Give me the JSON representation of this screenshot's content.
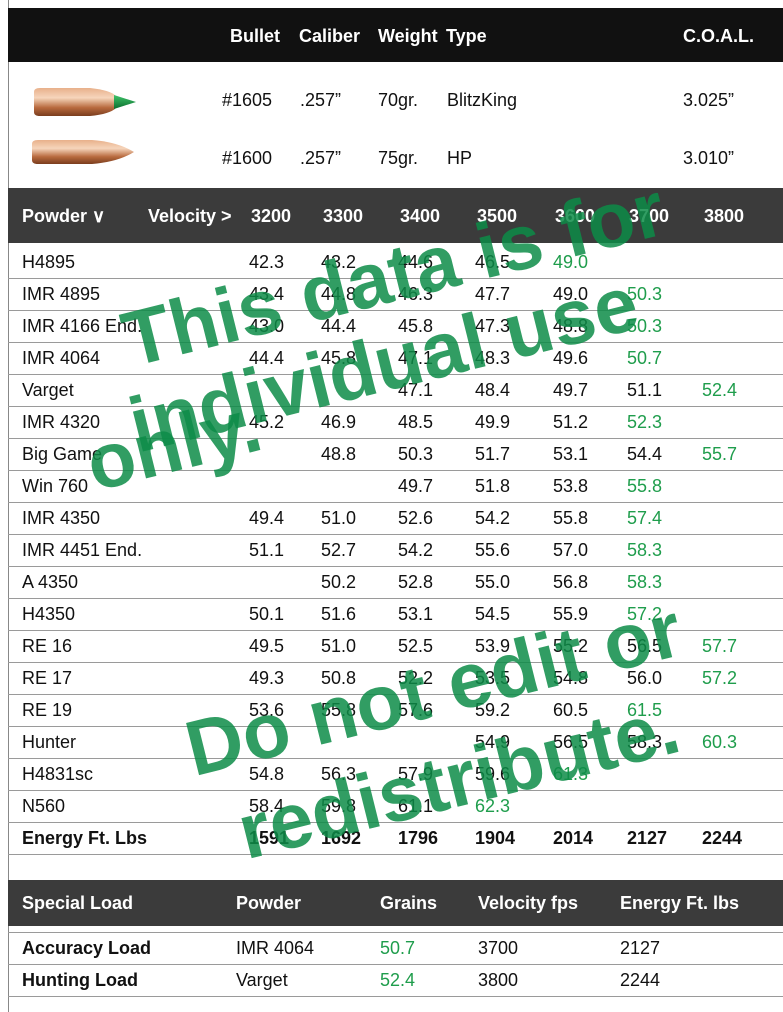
{
  "header": {
    "columns": [
      "Bullet",
      "Caliber",
      "Weight",
      "Type"
    ],
    "coal": "C.O.A.L."
  },
  "bullets": [
    {
      "number": "#1605",
      "caliber": ".257”",
      "weight": "70gr.",
      "type": "BlitzKing",
      "coal": "3.025”"
    },
    {
      "number": "#1600",
      "caliber": ".257”",
      "weight": "75gr.",
      "type": "HP",
      "coal": "3.010”"
    }
  ],
  "table": {
    "powder_header": "Powder ∨",
    "velocity_header": "Velocity >",
    "velocities": [
      3200,
      3300,
      3400,
      3500,
      3600,
      3700,
      3800
    ],
    "rows": [
      {
        "powder": "H4895",
        "charges": [
          "42.3",
          "43.2",
          "44.6",
          "46.5",
          "49.0",
          null,
          null
        ]
      },
      {
        "powder": "IMR 4895",
        "charges": [
          "43.4",
          "44.8",
          "46.3",
          "47.7",
          "49.0",
          "50.3",
          null
        ]
      },
      {
        "powder": "IMR 4166 End.",
        "charges": [
          "43.0",
          "44.4",
          "45.8",
          "47.3",
          "48.8",
          "50.3",
          null
        ]
      },
      {
        "powder": "IMR 4064",
        "charges": [
          "44.4",
          "45.8",
          "47.1",
          "48.3",
          "49.6",
          "50.7",
          null
        ]
      },
      {
        "powder": "Varget",
        "charges": [
          null,
          null,
          "47.1",
          "48.4",
          "49.7",
          "51.1",
          "52.4"
        ]
      },
      {
        "powder": "IMR 4320",
        "charges": [
          "45.2",
          "46.9",
          "48.5",
          "49.9",
          "51.2",
          "52.3",
          null
        ]
      },
      {
        "powder": "Big Game",
        "charges": [
          null,
          "48.8",
          "50.3",
          "51.7",
          "53.1",
          "54.4",
          "55.7"
        ]
      },
      {
        "powder": "Win 760",
        "charges": [
          null,
          null,
          "49.7",
          "51.8",
          "53.8",
          "55.8",
          null
        ]
      },
      {
        "powder": "IMR 4350",
        "charges": [
          "49.4",
          "51.0",
          "52.6",
          "54.2",
          "55.8",
          "57.4",
          null
        ]
      },
      {
        "powder": "IMR 4451 End.",
        "charges": [
          "51.1",
          "52.7",
          "54.2",
          "55.6",
          "57.0",
          "58.3",
          null
        ]
      },
      {
        "powder": "A 4350",
        "charges": [
          null,
          "50.2",
          "52.8",
          "55.0",
          "56.8",
          "58.3",
          null
        ]
      },
      {
        "powder": "H4350",
        "charges": [
          "50.1",
          "51.6",
          "53.1",
          "54.5",
          "55.9",
          "57.2",
          null
        ]
      },
      {
        "powder": "RE 16",
        "charges": [
          "49.5",
          "51.0",
          "52.5",
          "53.9",
          "55.2",
          "56.5",
          "57.7"
        ]
      },
      {
        "powder": "RE 17",
        "charges": [
          "49.3",
          "50.8",
          "52.2",
          "53.5",
          "54.8",
          "56.0",
          "57.2"
        ]
      },
      {
        "powder": "RE 19",
        "charges": [
          "53.6",
          "55.8",
          "57.6",
          "59.2",
          "60.5",
          "61.5",
          null
        ]
      },
      {
        "powder": "Hunter",
        "charges": [
          null,
          null,
          null,
          "54.9",
          "56.5",
          "58.3",
          "60.3"
        ]
      },
      {
        "powder": "H4831sc",
        "charges": [
          "54.8",
          "56.3",
          "57.9",
          "59.6",
          "61.3",
          null,
          null
        ]
      },
      {
        "powder": "N560",
        "charges": [
          "58.4",
          "59.8",
          "61.1",
          "62.3",
          null,
          null,
          null
        ]
      }
    ],
    "energy": {
      "label": "Energy Ft. Lbs",
      "values": [
        1591,
        1692,
        1796,
        1904,
        2014,
        2127,
        2244
      ]
    }
  },
  "special": {
    "headers": [
      "Special Load",
      "Powder",
      "Grains",
      "Velocity fps",
      "Energy Ft. lbs"
    ],
    "rows": [
      [
        "Accuracy Load",
        "IMR 4064",
        "50.7",
        "3700",
        "2127"
      ],
      [
        "Hunting Load",
        "Varget",
        "52.4",
        "3800",
        "2244"
      ]
    ]
  },
  "watermark": [
    "This data is for",
    "individual use",
    "only.",
    "Do not edit or",
    "redistribute."
  ],
  "max_charge_color": "#1f9d4c"
}
